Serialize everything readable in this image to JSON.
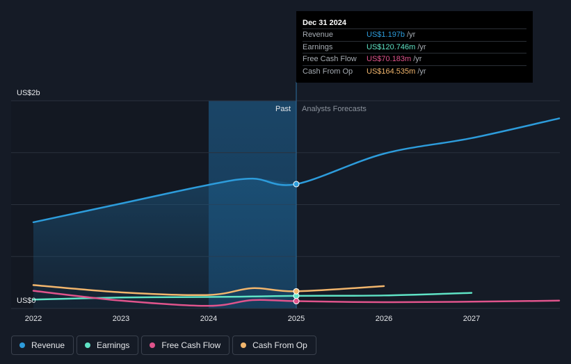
{
  "tooltip": {
    "date": "Dec 31 2024",
    "rows": [
      {
        "name": "Revenue",
        "value": "US$1.197b",
        "unit": "/yr",
        "color": "#2d9cdb"
      },
      {
        "name": "Earnings",
        "value": "US$120.746m",
        "unit": "/yr",
        "color": "#5fe3c5"
      },
      {
        "name": "Free Cash Flow",
        "value": "US$70.183m",
        "unit": "/yr",
        "color": "#e0548c"
      },
      {
        "name": "Cash From Op",
        "value": "US$164.535m",
        "unit": "/yr",
        "color": "#f2b66d"
      }
    ]
  },
  "labels": {
    "past": "Past",
    "forecast": "Analysts Forecasts"
  },
  "legend": [
    {
      "label": "Revenue",
      "color": "#2d9cdb"
    },
    {
      "label": "Earnings",
      "color": "#5fe3c5"
    },
    {
      "label": "Free Cash Flow",
      "color": "#e0548c"
    },
    {
      "label": "Cash From Op",
      "color": "#f2b66d"
    }
  ],
  "chart_data": {
    "type": "line",
    "title": "",
    "xlabel": "",
    "ylabel": "",
    "ylim": [
      0,
      2000
    ],
    "xlim": [
      2021.9,
      2027.98
    ],
    "y_tick_labels": [
      {
        "value": 2000,
        "label": "US$2b"
      },
      {
        "value": 0,
        "label": "US$0"
      }
    ],
    "x_ticks": [
      2022,
      2023,
      2024,
      2025,
      2026,
      2027
    ],
    "x_tick_labels": [
      "2022",
      "2023",
      "2024",
      "2025",
      "2026",
      "2027"
    ],
    "grid": true,
    "legend_position": "bottom-left",
    "past_region": [
      2024.0,
      2025.0
    ],
    "highlight_x": 2025.0,
    "units": "US$ millions",
    "series": [
      {
        "name": "Revenue",
        "color": "#2d9cdb",
        "area": true,
        "x": [
          2022,
          2023,
          2024,
          2024.5,
          2025,
          2026,
          2027,
          2028
        ],
        "y": [
          830,
          1010,
          1190,
          1250,
          1197,
          1490,
          1640,
          1830
        ],
        "past_until": 2025
      },
      {
        "name": "Earnings",
        "color": "#5fe3c5",
        "x": [
          2022,
          2023,
          2024,
          2024.5,
          2025,
          2026,
          2027
        ],
        "y": [
          85,
          105,
          110,
          115,
          121,
          125,
          150
        ],
        "past_until": 2025
      },
      {
        "name": "Free Cash Flow",
        "color": "#e0548c",
        "x": [
          2022,
          2023,
          2024,
          2024.5,
          2025,
          2026,
          2027,
          2028
        ],
        "y": [
          170,
          75,
          25,
          80,
          70,
          60,
          65,
          75
        ],
        "past_until": 2025
      },
      {
        "name": "Cash From Op",
        "color": "#f2b66d",
        "x": [
          2022,
          2023,
          2024,
          2024.5,
          2025,
          2026
        ],
        "y": [
          225,
          155,
          130,
          195,
          165,
          215
        ],
        "past_until": 2025
      }
    ]
  }
}
